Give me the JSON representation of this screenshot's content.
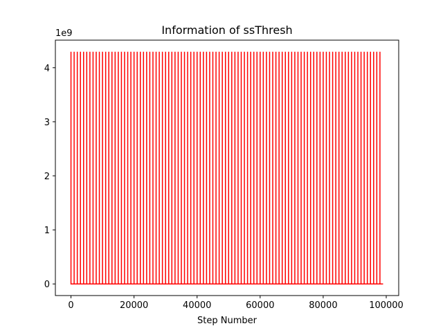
{
  "chart_data": {
    "type": "line",
    "title": "Information of ssThresh",
    "xlabel": "Step Number",
    "ylabel": "",
    "y_multiplier_label": "1e9",
    "xlim": [
      -4950,
      103950
    ],
    "ylim": [
      -214748364,
      4509715660
    ],
    "x_ticks": [
      0,
      20000,
      40000,
      60000,
      80000,
      100000
    ],
    "x_tick_labels": [
      "0",
      "20000",
      "40000",
      "60000",
      "80000",
      "100000"
    ],
    "y_ticks": [
      0,
      1000000000,
      2000000000,
      3000000000,
      4000000000
    ],
    "y_tick_labels": [
      "0",
      "1",
      "2",
      "3",
      "4"
    ],
    "grid": false,
    "legend": "none",
    "series": [
      {
        "color": "#ff0000",
        "pattern": "spikes",
        "baseline_value": 0,
        "spike_value": 4294967295,
        "x_start": 0,
        "x_end": 99000,
        "spike_start": 0,
        "spike_interval": 1000,
        "spike_end": 98000
      }
    ]
  }
}
